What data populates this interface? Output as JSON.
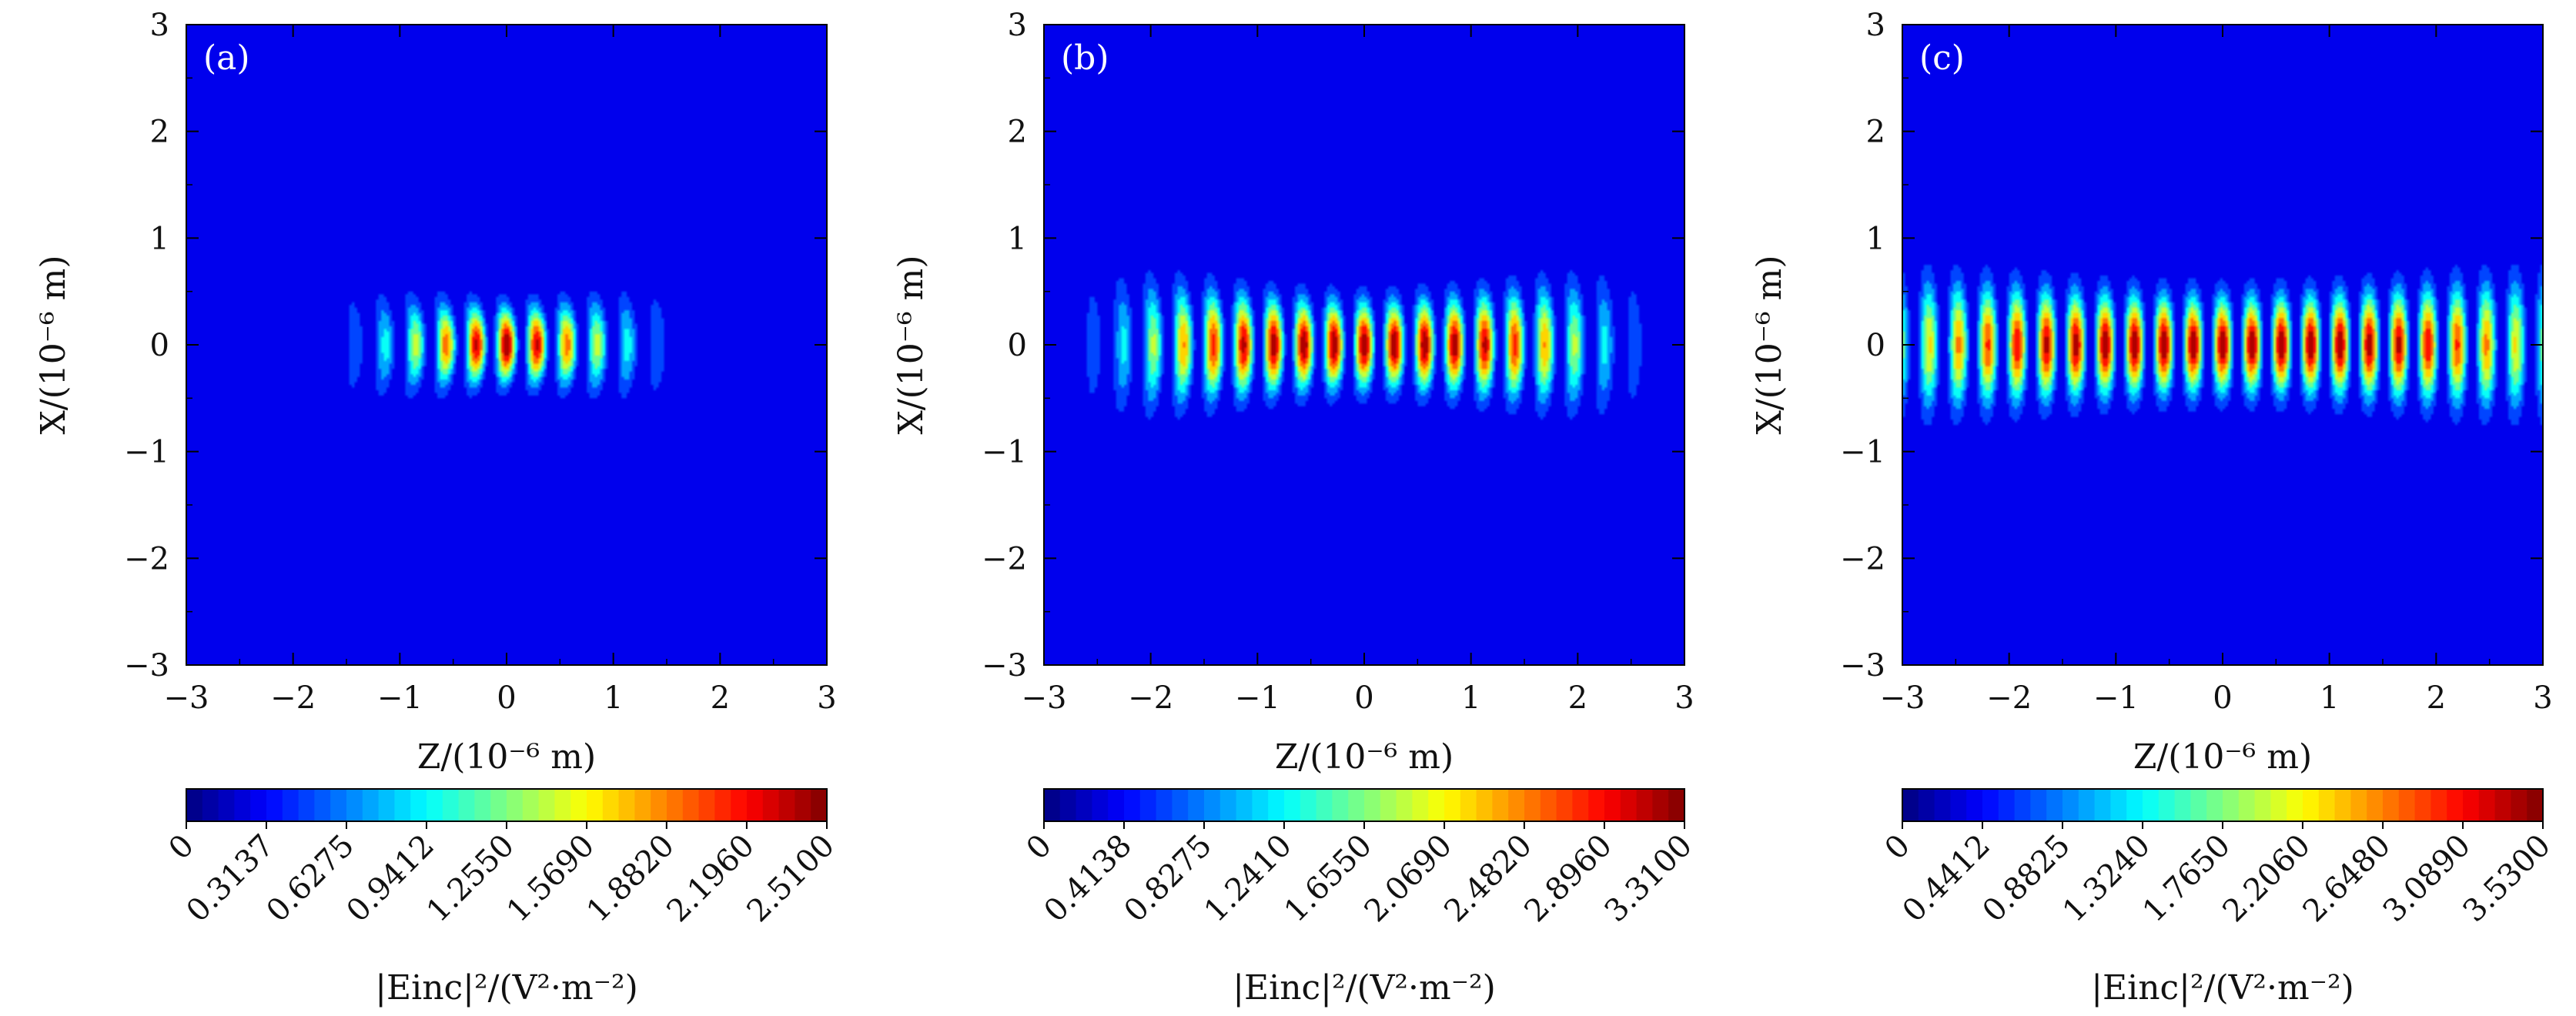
{
  "chart_data": [
    {
      "type": "heatmap",
      "panel_label": "(a)",
      "xlabel": "Z/(10⁻⁶ m)",
      "ylabel": "X/(10⁻⁶ m)",
      "xlim": [
        -3,
        3
      ],
      "ylim": [
        -3,
        3
      ],
      "xticks": [
        -3,
        -2,
        -1,
        0,
        1,
        2,
        3
      ],
      "yticks": [
        -3,
        -2,
        -1,
        0,
        1,
        2,
        3
      ],
      "xtick_labels": [
        "−3",
        "−2",
        "−1",
        "0",
        "1",
        "2",
        "3"
      ],
      "ytick_labels": [
        "−3",
        "−2",
        "−1",
        "0",
        "1",
        "2",
        "3"
      ],
      "field": {
        "fringe_period": 0.57,
        "peak": 2.51,
        "axial_width": 1.1,
        "transverse_width_center": 0.45,
        "transverse_growth": 0.3,
        "curvature": 0.18,
        "envelope_power": 1
      },
      "colorbar": {
        "min": 0,
        "max": 2.51,
        "tick_values": [
          0,
          0.3137,
          0.6275,
          0.9412,
          1.255,
          1.569,
          1.882,
          2.196,
          2.51
        ],
        "tick_labels": [
          "0",
          "0.3137",
          "0.6275",
          "0.9412",
          "1.2550",
          "1.5690",
          "1.8820",
          "2.1960",
          "2.5100"
        ],
        "label": "|Einc|²/(V²·m⁻²)"
      }
    },
    {
      "type": "heatmap",
      "panel_label": "(b)",
      "xlabel": "Z/(10⁻⁶ m)",
      "ylabel": "X/(10⁻⁶ m)",
      "xlim": [
        -3,
        3
      ],
      "ylim": [
        -3,
        3
      ],
      "xticks": [
        -3,
        -2,
        -1,
        0,
        1,
        2,
        3
      ],
      "yticks": [
        -3,
        -2,
        -1,
        0,
        1,
        2,
        3
      ],
      "xtick_labels": [
        "−3",
        "−2",
        "−1",
        "0",
        "1",
        "2",
        "3"
      ],
      "ytick_labels": [
        "−3",
        "−2",
        "−1",
        "0",
        "1",
        "2",
        "3"
      ],
      "field": {
        "fringe_period": 0.565,
        "peak": 3.31,
        "axial_width": 2.2,
        "transverse_width_center": 0.52,
        "transverse_growth": 0.12,
        "curvature": 0.08,
        "envelope_power": 2
      },
      "colorbar": {
        "min": 0,
        "max": 3.31,
        "tick_values": [
          0,
          0.4138,
          0.8275,
          1.241,
          1.655,
          2.069,
          2.482,
          2.896,
          3.31
        ],
        "tick_labels": [
          "0",
          "0.4138",
          "0.8275",
          "1.2410",
          "1.6550",
          "2.0690",
          "2.4820",
          "2.8960",
          "3.3100"
        ],
        "label": "|Einc|²/(V²·m⁻²)"
      }
    },
    {
      "type": "heatmap",
      "panel_label": "(c)",
      "xlabel": "Z/(10⁻⁶ m)",
      "ylabel": "X/(10⁻⁶ m)",
      "xlim": [
        -3,
        3
      ],
      "ylim": [
        -3,
        3
      ],
      "xticks": [
        -3,
        -2,
        -1,
        0,
        1,
        2,
        3
      ],
      "yticks": [
        -3,
        -2,
        -1,
        0,
        1,
        2,
        3
      ],
      "xtick_labels": [
        "−3",
        "−2",
        "−1",
        "0",
        "1",
        "2",
        "3"
      ],
      "ytick_labels": [
        "−3",
        "−2",
        "−1",
        "0",
        "1",
        "2",
        "3"
      ],
      "field": {
        "fringe_period": 0.55,
        "peak": 3.53,
        "axial_width": 3.3,
        "transverse_width_center": 0.58,
        "transverse_growth": 0.05,
        "curvature": 0.03,
        "envelope_power": 2
      },
      "colorbar": {
        "min": 0,
        "max": 3.53,
        "tick_values": [
          0,
          0.4412,
          0.8825,
          1.324,
          1.765,
          2.206,
          2.648,
          3.089,
          3.53
        ],
        "tick_labels": [
          "0",
          "0.4412",
          "0.8825",
          "1.3240",
          "1.7650",
          "2.2060",
          "2.6480",
          "3.0890",
          "3.5300"
        ],
        "label": "|Einc|²/(V²·m⁻²)"
      }
    }
  ]
}
